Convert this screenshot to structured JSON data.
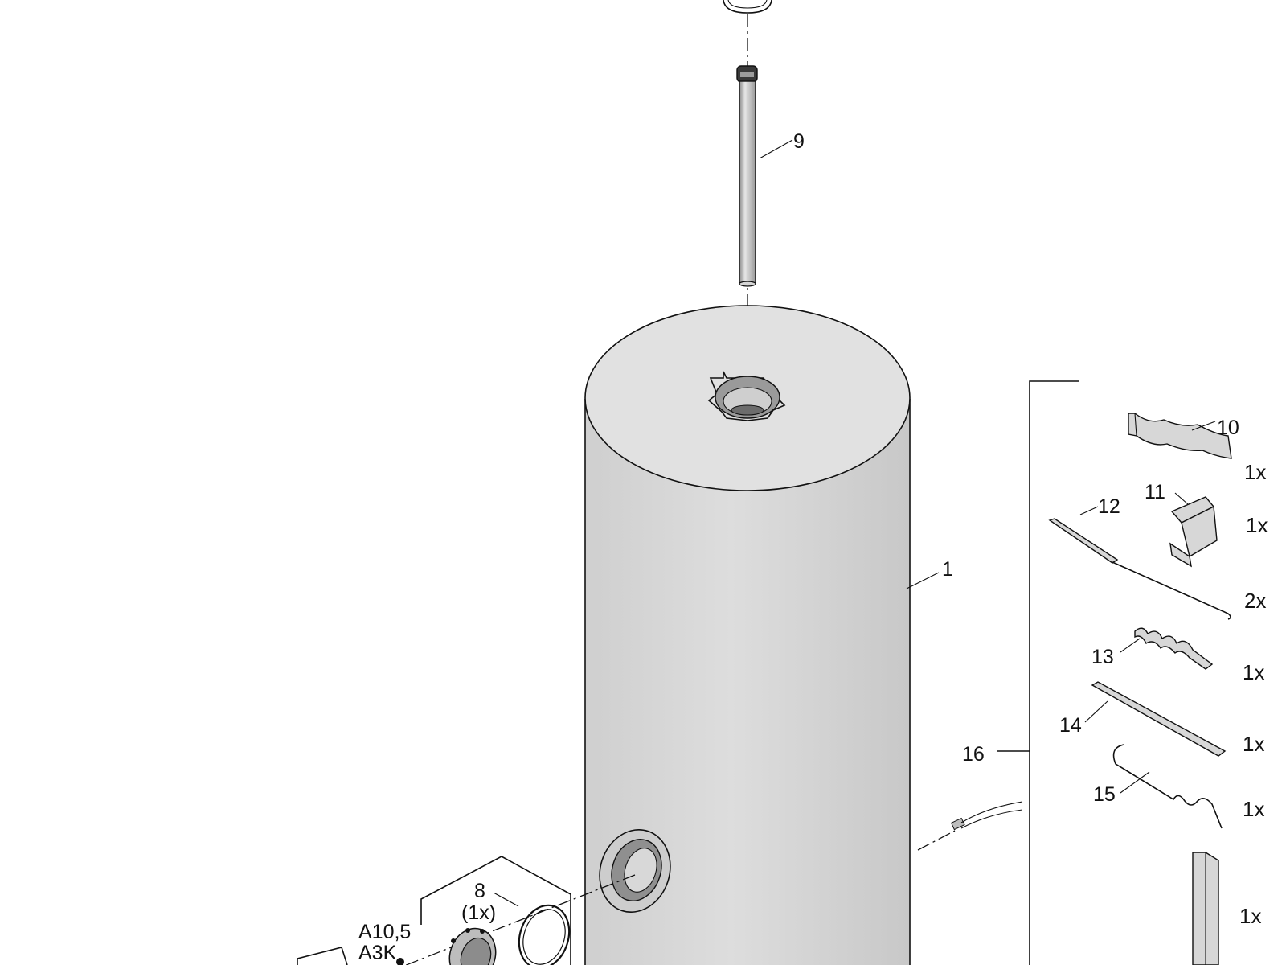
{
  "parts": [
    {
      "id": "p1",
      "label": "1"
    },
    {
      "id": "p8",
      "label": "8",
      "qty": "(1x)"
    },
    {
      "id": "p9",
      "label": "9"
    },
    {
      "id": "p10",
      "label": "10",
      "count": "1x"
    },
    {
      "id": "p11",
      "label": "11",
      "count": "1x"
    },
    {
      "id": "p12",
      "label": "12",
      "count": "2x"
    },
    {
      "id": "p13",
      "label": "13",
      "count": "1x"
    },
    {
      "id": "p14",
      "label": "14",
      "count": "1x"
    },
    {
      "id": "p15",
      "label": "15",
      "count": "1x"
    },
    {
      "id": "p16",
      "label": "16"
    }
  ],
  "extra_count": "1x",
  "codes": {
    "line1": "A10,5",
    "line2": "A3K"
  }
}
